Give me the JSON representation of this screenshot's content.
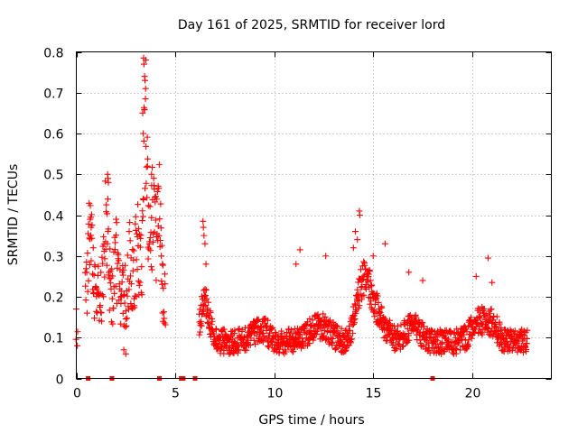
{
  "chart_data": {
    "type": "scatter",
    "title": "Day 161 of 2025, SRMTID for receiver lord",
    "xlabel": "GPS time / hours",
    "ylabel": "SRMTID / TECUs",
    "xlim": [
      0,
      24
    ],
    "ylim": [
      0,
      0.8
    ],
    "xticks": [
      0,
      5,
      10,
      15,
      20
    ],
    "xtick_labels": [
      "0",
      "5",
      "10",
      "15",
      "20"
    ],
    "yticks": [
      0,
      0.1,
      0.2,
      0.3,
      0.4,
      0.5,
      0.6,
      0.7,
      0.8
    ],
    "ytick_labels": [
      "0",
      "0.1",
      "0.2",
      "0.3",
      "0.4",
      "0.5",
      "0.6",
      "0.7",
      "0.8"
    ],
    "grid": true,
    "legend": "none",
    "marker": "plus",
    "series_color": "#ff0000",
    "zero_markers": {
      "marker": "square",
      "x": [
        0.6,
        1.8,
        4.2,
        5.3,
        5.4,
        6.0,
        18.0
      ]
    },
    "series": [
      {
        "name": "SRMTID",
        "segments": [
          {
            "start": 0.0,
            "end": 0.05,
            "step": 0.05,
            "base": 0.11,
            "amp": 0.04,
            "spikes": [
              [
                0.0,
                0.17
              ],
              [
                0.05,
                0.08
              ]
            ]
          },
          {
            "start": 0.45,
            "end": 4.5,
            "step": 0.016,
            "base": 0.2,
            "amp": 0.2,
            "bumps": [
              [
                0.7,
                0.15,
                0.14
              ],
              [
                1.5,
                0.15,
                0.22
              ],
              [
                2.0,
                0.1,
                0.1
              ],
              [
                2.7,
                0.15,
                0.08
              ],
              [
                3.1,
                0.2,
                0.12
              ],
              [
                3.5,
                0.12,
                0.45
              ],
              [
                3.9,
                0.25,
                0.2
              ],
              [
                4.2,
                0.1,
                0.15
              ]
            ],
            "spikes": [
              [
                3.4,
                0.785
              ],
              [
                3.42,
                0.77
              ],
              [
                3.45,
                0.74
              ],
              [
                3.47,
                0.73
              ],
              [
                3.5,
                0.71
              ],
              [
                3.35,
                0.65
              ],
              [
                3.38,
                0.6
              ],
              [
                1.58,
                0.5
              ],
              [
                1.6,
                0.49
              ],
              [
                1.62,
                0.48
              ],
              [
                0.7,
                0.39
              ],
              [
                0.75,
                0.37
              ],
              [
                4.35,
                0.28
              ],
              [
                3.6,
                0.52
              ],
              [
                3.8,
                0.5
              ],
              [
                2.4,
                0.07
              ],
              [
                2.5,
                0.06
              ]
            ]
          },
          {
            "start": 6.2,
            "end": 22.8,
            "step": 0.014,
            "base": 0.09,
            "amp": 0.09,
            "bumps": [
              [
                6.5,
                0.3,
                0.1
              ],
              [
                9.3,
                0.6,
                0.03
              ],
              [
                12.3,
                0.7,
                0.04
              ],
              [
                14.5,
                0.5,
                0.14
              ],
              [
                15.2,
                0.6,
                0.06
              ],
              [
                17.0,
                0.5,
                0.04
              ],
              [
                20.3,
                0.5,
                0.05
              ],
              [
                21.0,
                0.4,
                0.04
              ]
            ],
            "spikes": [
              [
                6.4,
                0.385
              ],
              [
                6.42,
                0.37
              ],
              [
                6.45,
                0.35
              ],
              [
                6.5,
                0.33
              ],
              [
                6.55,
                0.28
              ],
              [
                14.3,
                0.41
              ],
              [
                14.32,
                0.4
              ],
              [
                14.1,
                0.36
              ],
              [
                14.2,
                0.34
              ],
              [
                14.0,
                0.32
              ],
              [
                15.6,
                0.33
              ],
              [
                11.3,
                0.315
              ],
              [
                11.1,
                0.28
              ],
              [
                12.6,
                0.3
              ],
              [
                16.8,
                0.26
              ],
              [
                17.5,
                0.24
              ],
              [
                20.2,
                0.25
              ],
              [
                20.8,
                0.295
              ],
              [
                21.0,
                0.235
              ],
              [
                15.0,
                0.3
              ]
            ]
          }
        ]
      }
    ]
  }
}
